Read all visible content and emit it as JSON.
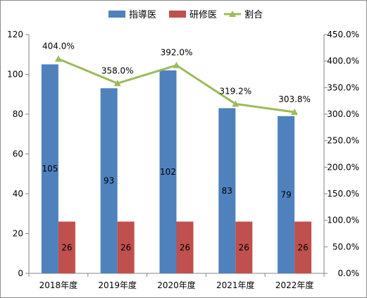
{
  "chart_data": {
    "type": "bar",
    "categories": [
      "2018年度",
      "2019年度",
      "2020年度",
      "2021年度",
      "2022年度"
    ],
    "series": [
      {
        "name": "指導医",
        "kind": "bar",
        "axis": "left",
        "color": "#4f81bd",
        "values": [
          105,
          93,
          102,
          83,
          79
        ],
        "labels": [
          "105",
          "93",
          "102",
          "83",
          "79"
        ]
      },
      {
        "name": "研修医",
        "kind": "bar",
        "axis": "left",
        "color": "#c0504d",
        "values": [
          26,
          26,
          26,
          26,
          26
        ],
        "labels": [
          "26",
          "26",
          "26",
          "26",
          "26"
        ]
      },
      {
        "name": "割合",
        "kind": "line",
        "axis": "right",
        "color": "#9bbb59",
        "values": [
          404.0,
          358.0,
          392.0,
          319.2,
          303.8
        ],
        "labels": [
          "404.0%",
          "358.0%",
          "392.0%",
          "319.2%",
          "303.8%"
        ]
      }
    ],
    "y_left": {
      "min": 0,
      "max": 120,
      "step": 20,
      "ticks": [
        "0",
        "20",
        "40",
        "60",
        "80",
        "100",
        "120"
      ]
    },
    "y_right": {
      "min": 0,
      "max": 450,
      "step": 50,
      "ticks": [
        "0.0%",
        "50.0%",
        "100.0%",
        "150.0%",
        "200.0%",
        "250.0%",
        "300.0%",
        "350.0%",
        "400.0%",
        "450.0%"
      ]
    },
    "grid": false,
    "legend_position": "top"
  }
}
